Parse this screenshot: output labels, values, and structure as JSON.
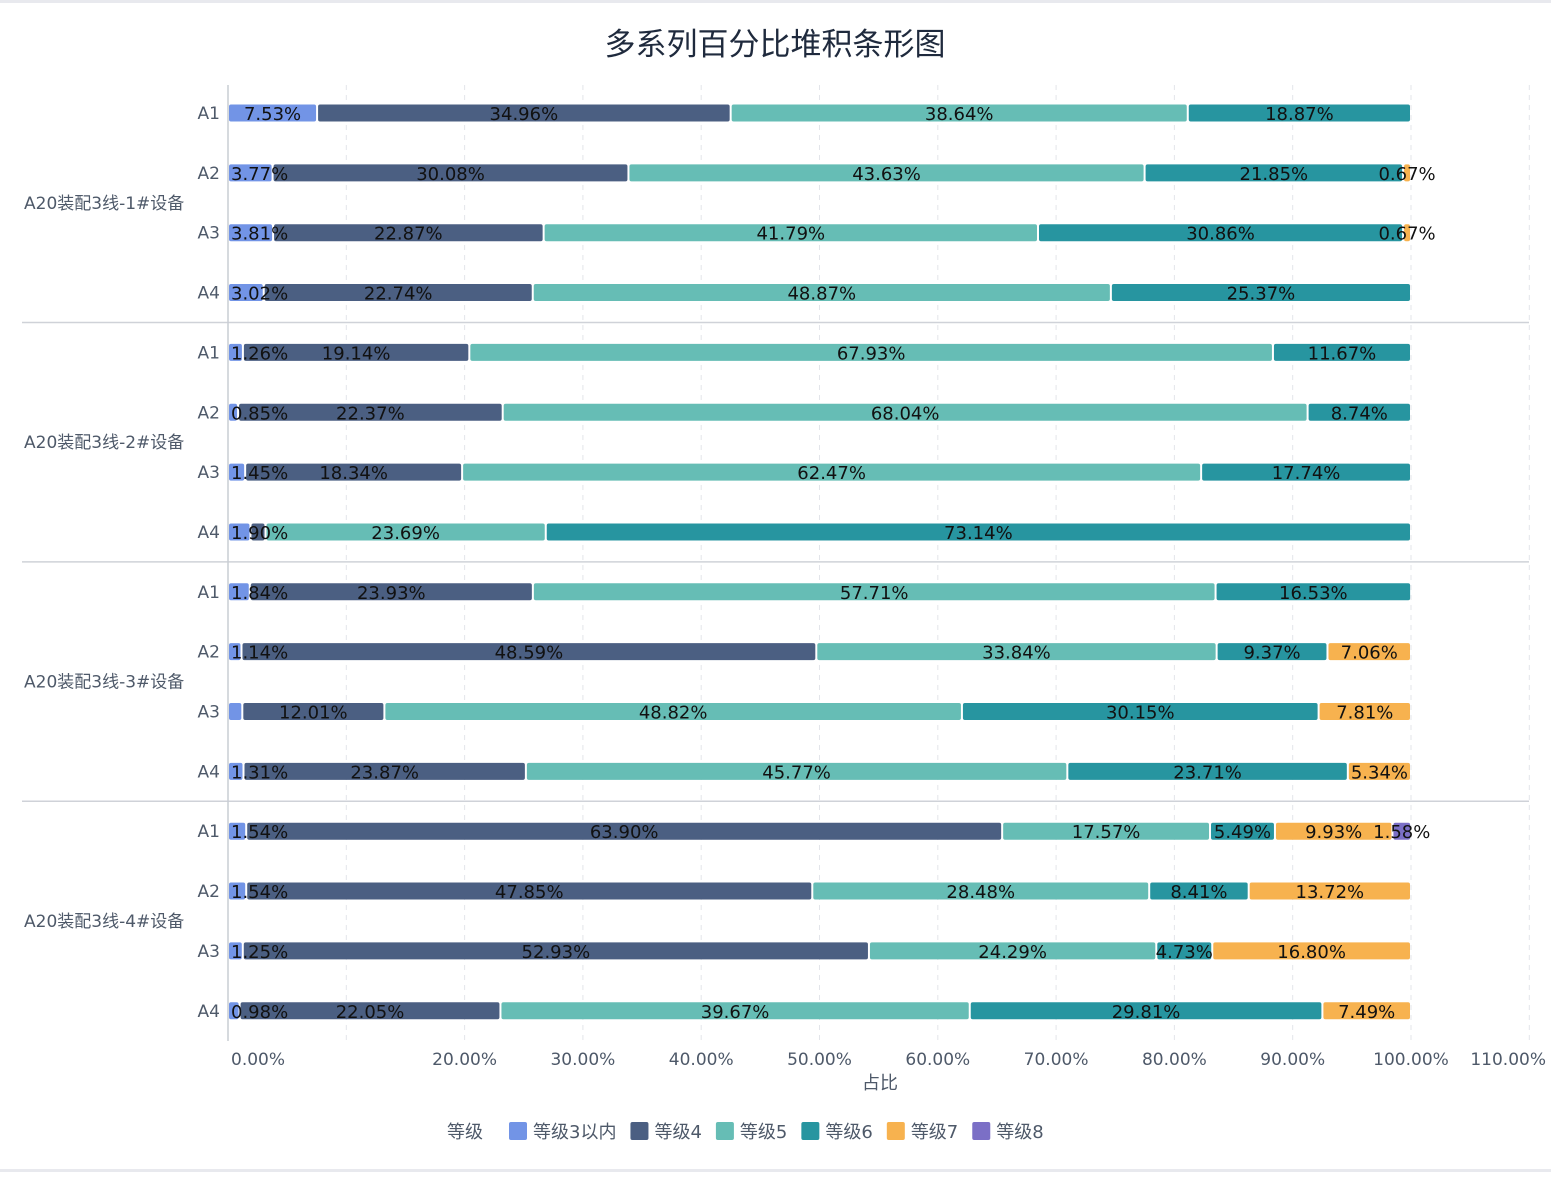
{
  "chart_data": {
    "type": "bar",
    "orientation": "horizontal",
    "stacked": "percent",
    "title": "多系列百分比堆积条形图",
    "xlabel": "占比",
    "ylabel": "",
    "xlim": [
      0,
      110
    ],
    "x_ticks": [
      "0.00%",
      "10.00%",
      "20.00%",
      "30.00%",
      "40.00%",
      "50.00%",
      "60.00%",
      "70.00%",
      "80.00%",
      "90.00%",
      "100.00%",
      "110.00%"
    ],
    "x_tick_values": [
      0,
      10,
      20,
      30,
      40,
      50,
      60,
      70,
      80,
      90,
      100,
      110
    ],
    "x_tick_hidden": [
      1
    ],
    "grid": true,
    "legend": {
      "title": "等级",
      "position": "bottom"
    },
    "series": [
      {
        "name": "等级3以内",
        "color": "#7294e6"
      },
      {
        "name": "等级4",
        "color": "#4b5f82"
      },
      {
        "name": "等级5",
        "color": "#66bdb5"
      },
      {
        "name": "等级6",
        "color": "#2795a0"
      },
      {
        "name": "等级7",
        "color": "#f7b24f"
      },
      {
        "name": "等级8",
        "color": "#7b6fc6"
      }
    ],
    "groups": [
      {
        "name": "A20装配3线-1#设备",
        "rows": [
          {
            "label": "A1",
            "values": [
              7.53,
              34.96,
              38.64,
              18.87,
              0,
              0
            ]
          },
          {
            "label": "A2",
            "values": [
              3.77,
              30.08,
              43.63,
              21.85,
              0.67,
              0
            ]
          },
          {
            "label": "A3",
            "values": [
              3.81,
              22.87,
              41.79,
              30.86,
              0.67,
              0
            ]
          },
          {
            "label": "A4",
            "values": [
              3.02,
              22.74,
              48.87,
              25.37,
              0,
              0
            ]
          }
        ]
      },
      {
        "name": "A20装配3线-2#设备",
        "rows": [
          {
            "label": "A1",
            "values": [
              1.26,
              19.14,
              67.93,
              11.67,
              0,
              0
            ]
          },
          {
            "label": "A2",
            "values": [
              0.85,
              22.37,
              68.04,
              8.74,
              0,
              0
            ]
          },
          {
            "label": "A3",
            "values": [
              1.45,
              18.34,
              62.47,
              17.74,
              0,
              0
            ]
          },
          {
            "label": "A4",
            "values": [
              1.9,
              1.27,
              23.69,
              73.14,
              0,
              0
            ],
            "hidden_labels": [
              1
            ]
          }
        ]
      },
      {
        "name": "A20装配3线-3#设备",
        "rows": [
          {
            "label": "A1",
            "values": [
              1.84,
              23.93,
              57.71,
              16.53,
              0,
              0
            ]
          },
          {
            "label": "A2",
            "values": [
              1.14,
              48.59,
              33.84,
              9.37,
              7.06,
              0
            ]
          },
          {
            "label": "A3",
            "values": [
              1.21,
              12.01,
              48.82,
              30.15,
              7.81,
              0
            ],
            "hidden_labels": [
              0
            ]
          },
          {
            "label": "A4",
            "values": [
              1.31,
              23.87,
              45.77,
              23.71,
              5.34,
              0
            ]
          }
        ]
      },
      {
        "name": "A20装配3线-4#设备",
        "rows": [
          {
            "label": "A1",
            "values": [
              1.54,
              63.9,
              17.57,
              5.49,
              9.93,
              1.58
            ]
          },
          {
            "label": "A2",
            "values": [
              1.54,
              47.85,
              28.48,
              8.41,
              13.72,
              0
            ]
          },
          {
            "label": "A3",
            "values": [
              1.25,
              52.93,
              24.29,
              4.73,
              16.8,
              0
            ]
          },
          {
            "label": "A4",
            "values": [
              0.98,
              22.05,
              39.67,
              29.81,
              7.49,
              0
            ]
          }
        ]
      }
    ]
  }
}
